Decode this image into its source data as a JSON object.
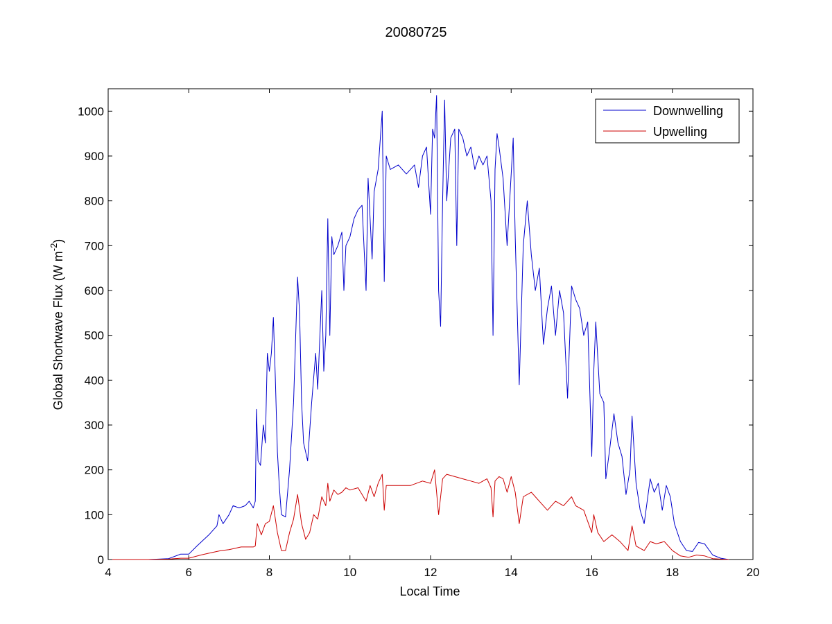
{
  "chart_data": {
    "type": "line",
    "title": "20080725",
    "xlabel": "Local Time",
    "ylabel_main": "Global Shortwave Flux (W m",
    "ylabel_sup": "-2",
    "ylabel_tail": ")",
    "xlim": [
      4,
      20
    ],
    "ylim": [
      0,
      1050
    ],
    "xticks": [
      4,
      6,
      8,
      10,
      12,
      14,
      16,
      18,
      20
    ],
    "yticks": [
      0,
      100,
      200,
      300,
      400,
      500,
      600,
      700,
      800,
      900,
      1000
    ],
    "legend_position": "top-right",
    "series": [
      {
        "name": "Downwelling",
        "color": "#0000cc",
        "points": [
          [
            4.1,
            0
          ],
          [
            5.0,
            0
          ],
          [
            5.5,
            2
          ],
          [
            5.8,
            12
          ],
          [
            6.0,
            12
          ],
          [
            6.2,
            30
          ],
          [
            6.5,
            55
          ],
          [
            6.7,
            75
          ],
          [
            6.75,
            100
          ],
          [
            6.85,
            80
          ],
          [
            7.0,
            100
          ],
          [
            7.1,
            120
          ],
          [
            7.25,
            115
          ],
          [
            7.4,
            120
          ],
          [
            7.5,
            130
          ],
          [
            7.6,
            115
          ],
          [
            7.65,
            130
          ],
          [
            7.68,
            335
          ],
          [
            7.72,
            220
          ],
          [
            7.78,
            210
          ],
          [
            7.85,
            300
          ],
          [
            7.9,
            260
          ],
          [
            7.95,
            460
          ],
          [
            8.0,
            420
          ],
          [
            8.05,
            460
          ],
          [
            8.1,
            540
          ],
          [
            8.15,
            400
          ],
          [
            8.2,
            240
          ],
          [
            8.25,
            160
          ],
          [
            8.3,
            100
          ],
          [
            8.4,
            95
          ],
          [
            8.5,
            200
          ],
          [
            8.6,
            350
          ],
          [
            8.7,
            630
          ],
          [
            8.75,
            550
          ],
          [
            8.8,
            350
          ],
          [
            8.85,
            260
          ],
          [
            8.95,
            220
          ],
          [
            9.05,
            350
          ],
          [
            9.15,
            460
          ],
          [
            9.2,
            380
          ],
          [
            9.3,
            600
          ],
          [
            9.35,
            420
          ],
          [
            9.4,
            500
          ],
          [
            9.45,
            760
          ],
          [
            9.5,
            500
          ],
          [
            9.55,
            720
          ],
          [
            9.6,
            680
          ],
          [
            9.7,
            700
          ],
          [
            9.8,
            730
          ],
          [
            9.85,
            600
          ],
          [
            9.9,
            700
          ],
          [
            10.0,
            720
          ],
          [
            10.1,
            760
          ],
          [
            10.2,
            780
          ],
          [
            10.3,
            790
          ],
          [
            10.4,
            600
          ],
          [
            10.45,
            850
          ],
          [
            10.55,
            670
          ],
          [
            10.6,
            820
          ],
          [
            10.7,
            870
          ],
          [
            10.8,
            1000
          ],
          [
            10.85,
            620
          ],
          [
            10.9,
            900
          ],
          [
            11.0,
            870
          ],
          [
            11.2,
            880
          ],
          [
            11.4,
            860
          ],
          [
            11.6,
            880
          ],
          [
            11.7,
            830
          ],
          [
            11.8,
            900
          ],
          [
            11.9,
            920
          ],
          [
            12.0,
            770
          ],
          [
            12.05,
            960
          ],
          [
            12.1,
            940
          ],
          [
            12.15,
            1035
          ],
          [
            12.2,
            600
          ],
          [
            12.25,
            520
          ],
          [
            12.3,
            800
          ],
          [
            12.35,
            1025
          ],
          [
            12.4,
            800
          ],
          [
            12.5,
            940
          ],
          [
            12.6,
            960
          ],
          [
            12.65,
            700
          ],
          [
            12.7,
            960
          ],
          [
            12.8,
            940
          ],
          [
            12.9,
            900
          ],
          [
            13.0,
            920
          ],
          [
            13.1,
            870
          ],
          [
            13.2,
            900
          ],
          [
            13.3,
            880
          ],
          [
            13.4,
            900
          ],
          [
            13.5,
            800
          ],
          [
            13.55,
            500
          ],
          [
            13.6,
            870
          ],
          [
            13.65,
            950
          ],
          [
            13.7,
            920
          ],
          [
            13.8,
            850
          ],
          [
            13.9,
            700
          ],
          [
            14.0,
            860
          ],
          [
            14.05,
            940
          ],
          [
            14.1,
            720
          ],
          [
            14.2,
            390
          ],
          [
            14.3,
            700
          ],
          [
            14.4,
            800
          ],
          [
            14.5,
            680
          ],
          [
            14.6,
            600
          ],
          [
            14.7,
            650
          ],
          [
            14.8,
            480
          ],
          [
            14.9,
            560
          ],
          [
            15.0,
            610
          ],
          [
            15.1,
            500
          ],
          [
            15.2,
            600
          ],
          [
            15.3,
            550
          ],
          [
            15.4,
            360
          ],
          [
            15.5,
            610
          ],
          [
            15.6,
            580
          ],
          [
            15.7,
            560
          ],
          [
            15.8,
            500
          ],
          [
            15.9,
            530
          ],
          [
            16.0,
            230
          ],
          [
            16.05,
            420
          ],
          [
            16.1,
            530
          ],
          [
            16.2,
            370
          ],
          [
            16.3,
            350
          ],
          [
            16.35,
            180
          ],
          [
            16.45,
            250
          ],
          [
            16.55,
            325
          ],
          [
            16.65,
            260
          ],
          [
            16.75,
            230
          ],
          [
            16.85,
            145
          ],
          [
            16.95,
            200
          ],
          [
            17.0,
            320
          ],
          [
            17.1,
            170
          ],
          [
            17.2,
            110
          ],
          [
            17.3,
            80
          ],
          [
            17.45,
            180
          ],
          [
            17.55,
            150
          ],
          [
            17.65,
            170
          ],
          [
            17.75,
            110
          ],
          [
            17.85,
            165
          ],
          [
            17.95,
            140
          ],
          [
            18.05,
            80
          ],
          [
            18.2,
            40
          ],
          [
            18.35,
            20
          ],
          [
            18.5,
            18
          ],
          [
            18.65,
            38
          ],
          [
            18.8,
            35
          ],
          [
            19.0,
            10
          ],
          [
            19.2,
            3
          ],
          [
            19.4,
            0
          ]
        ]
      },
      {
        "name": "Upwelling",
        "color": "#cc0000",
        "points": [
          [
            4.1,
            0
          ],
          [
            5.0,
            0
          ],
          [
            5.5,
            1
          ],
          [
            5.8,
            3
          ],
          [
            6.0,
            3
          ],
          [
            6.3,
            10
          ],
          [
            6.5,
            14
          ],
          [
            6.8,
            20
          ],
          [
            7.0,
            22
          ],
          [
            7.3,
            28
          ],
          [
            7.6,
            28
          ],
          [
            7.65,
            30
          ],
          [
            7.7,
            80
          ],
          [
            7.8,
            55
          ],
          [
            7.9,
            80
          ],
          [
            8.0,
            85
          ],
          [
            8.1,
            120
          ],
          [
            8.2,
            60
          ],
          [
            8.3,
            20
          ],
          [
            8.4,
            20
          ],
          [
            8.5,
            60
          ],
          [
            8.6,
            90
          ],
          [
            8.7,
            145
          ],
          [
            8.8,
            80
          ],
          [
            8.9,
            45
          ],
          [
            9.0,
            60
          ],
          [
            9.1,
            100
          ],
          [
            9.2,
            90
          ],
          [
            9.3,
            140
          ],
          [
            9.4,
            120
          ],
          [
            9.45,
            170
          ],
          [
            9.5,
            130
          ],
          [
            9.6,
            155
          ],
          [
            9.7,
            145
          ],
          [
            9.8,
            150
          ],
          [
            9.9,
            160
          ],
          [
            10.0,
            155
          ],
          [
            10.2,
            160
          ],
          [
            10.4,
            130
          ],
          [
            10.5,
            165
          ],
          [
            10.6,
            140
          ],
          [
            10.7,
            170
          ],
          [
            10.8,
            190
          ],
          [
            10.85,
            110
          ],
          [
            10.9,
            165
          ],
          [
            11.2,
            165
          ],
          [
            11.5,
            165
          ],
          [
            11.8,
            175
          ],
          [
            12.0,
            170
          ],
          [
            12.1,
            200
          ],
          [
            12.2,
            100
          ],
          [
            12.3,
            180
          ],
          [
            12.4,
            190
          ],
          [
            12.6,
            185
          ],
          [
            12.8,
            180
          ],
          [
            13.0,
            175
          ],
          [
            13.2,
            170
          ],
          [
            13.4,
            180
          ],
          [
            13.5,
            160
          ],
          [
            13.55,
            95
          ],
          [
            13.6,
            175
          ],
          [
            13.7,
            185
          ],
          [
            13.8,
            180
          ],
          [
            13.9,
            150
          ],
          [
            14.0,
            185
          ],
          [
            14.1,
            150
          ],
          [
            14.2,
            80
          ],
          [
            14.3,
            140
          ],
          [
            14.5,
            150
          ],
          [
            14.7,
            130
          ],
          [
            14.9,
            110
          ],
          [
            15.1,
            130
          ],
          [
            15.3,
            120
          ],
          [
            15.5,
            140
          ],
          [
            15.6,
            120
          ],
          [
            15.8,
            110
          ],
          [
            16.0,
            60
          ],
          [
            16.05,
            100
          ],
          [
            16.15,
            60
          ],
          [
            16.3,
            40
          ],
          [
            16.5,
            55
          ],
          [
            16.7,
            40
          ],
          [
            16.9,
            20
          ],
          [
            17.0,
            75
          ],
          [
            17.1,
            30
          ],
          [
            17.3,
            20
          ],
          [
            17.45,
            40
          ],
          [
            17.6,
            35
          ],
          [
            17.8,
            40
          ],
          [
            18.0,
            20
          ],
          [
            18.2,
            8
          ],
          [
            18.4,
            5
          ],
          [
            18.6,
            10
          ],
          [
            18.8,
            8
          ],
          [
            19.0,
            2
          ],
          [
            19.4,
            0
          ]
        ]
      }
    ]
  }
}
